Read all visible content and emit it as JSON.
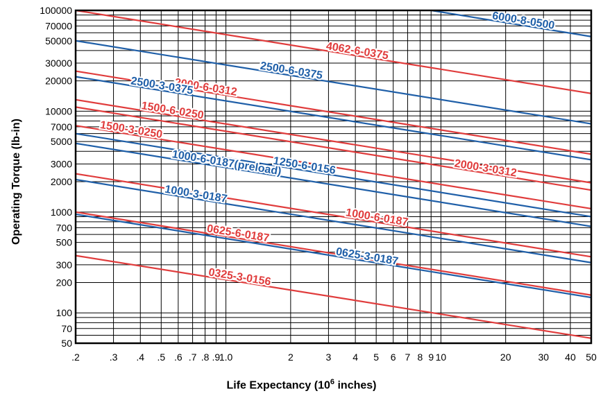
{
  "chart_data": {
    "type": "line",
    "title": "",
    "xlabel_main": "Life Expectancy (10",
    "xlabel_sup": "6",
    "xlabel_tail": " inches)",
    "ylabel": "Operating Torque (lb-in)",
    "x_scale": "log",
    "y_scale": "log",
    "xlim": [
      0.2,
      50
    ],
    "ylim": [
      50,
      100000
    ],
    "grid": true,
    "legend": "none",
    "x_ticks": [
      {
        "v": 0.2,
        "label": ".2"
      },
      {
        "v": 0.3,
        "label": ".3"
      },
      {
        "v": 0.4,
        "label": ".4"
      },
      {
        "v": 0.5,
        "label": ".5"
      },
      {
        "v": 0.6,
        "label": ".6"
      },
      {
        "v": 0.7,
        "label": ".7"
      },
      {
        "v": 0.8,
        "label": ".8"
      },
      {
        "v": 0.9,
        "label": ".9"
      },
      {
        "v": 1.0,
        "label": "1.0"
      },
      {
        "v": 2,
        "label": "2"
      },
      {
        "v": 3,
        "label": "3"
      },
      {
        "v": 4,
        "label": "4"
      },
      {
        "v": 5,
        "label": "5"
      },
      {
        "v": 6,
        "label": "6"
      },
      {
        "v": 7,
        "label": "7"
      },
      {
        "v": 8,
        "label": "8"
      },
      {
        "v": 9,
        "label": "9"
      },
      {
        "v": 10,
        "label": "10"
      },
      {
        "v": 20,
        "label": "20"
      },
      {
        "v": 30,
        "label": "30"
      },
      {
        "v": 40,
        "label": "40"
      },
      {
        "v": 50,
        "label": "50"
      }
    ],
    "y_ticks": [
      {
        "v": 50,
        "label": "50"
      },
      {
        "v": 70,
        "label": "70"
      },
      {
        "v": 100,
        "label": "100"
      },
      {
        "v": 200,
        "label": "200"
      },
      {
        "v": 300,
        "label": "300"
      },
      {
        "v": 500,
        "label": "500"
      },
      {
        "v": 700,
        "label": "700"
      },
      {
        "v": 1000,
        "label": "1000"
      },
      {
        "v": 2000,
        "label": "2000"
      },
      {
        "v": 3000,
        "label": "3000"
      },
      {
        "v": 5000,
        "label": "5000"
      },
      {
        "v": 7000,
        "label": "7000"
      },
      {
        "v": 10000,
        "label": "10000"
      },
      {
        "v": 20000,
        "label": "20000"
      },
      {
        "v": 30000,
        "label": "30000"
      },
      {
        "v": 50000,
        "label": "50000"
      },
      {
        "v": 70000,
        "label": "70000"
      },
      {
        "v": 100000,
        "label": "100000"
      }
    ],
    "y_grid_extra": [
      40000,
      60000,
      80000,
      90000,
      400,
      600,
      800,
      900,
      4000,
      6000,
      8000,
      9000,
      60,
      80,
      90
    ],
    "colors": {
      "red": "#e03c3c",
      "blue": "#1f5fa8"
    },
    "series": [
      {
        "name": "6000-8-0500",
        "color": "blue",
        "x": [
          9,
          50
        ],
        "y": [
          100000,
          55000
        ],
        "label_x": 2.0,
        "label_y": 19.2,
        "label_at": 24
      },
      {
        "name": "4062-6-0375",
        "color": "red",
        "x": [
          0.2,
          50
        ],
        "y": [
          100000,
          15000
        ],
        "label_x": 1.75,
        "label_y": 18.3,
        "label_at": 4.05
      },
      {
        "name": "2500-6-0375",
        "color": "blue",
        "x": [
          0.2,
          50
        ],
        "y": [
          50000,
          7500
        ],
        "label_x": 1.75,
        "label_y": 17.4,
        "label_at": 2.0
      },
      {
        "name": "2000-6-0312",
        "color": "red",
        "x": [
          0.2,
          50
        ],
        "y": [
          25000,
          3750
        ],
        "label_x": 1.6,
        "label_y": 16.6,
        "label_at": 0.8
      },
      {
        "name": "2500-3-0375",
        "color": "blue",
        "x": [
          0.2,
          50
        ],
        "y": [
          22000,
          3300
        ],
        "label_x": 1.4,
        "label_y": 16.5,
        "label_at": 0.5
      },
      {
        "name": "1500-6-0250",
        "color": "red",
        "x": [
          0.2,
          50
        ],
        "y": [
          13000,
          1950
        ],
        "label_x": 1.6,
        "label_y": 16.0,
        "label_at": 0.56
      },
      {
        "name": "2000-3-0312",
        "color": "red",
        "x": [
          0.2,
          50
        ],
        "y": [
          11000,
          1650
        ],
        "label_x": 1.9,
        "label_y": 18.1,
        "label_at": 16
      },
      {
        "name": "1500-3-0250",
        "color": "red",
        "x": [
          0.2,
          50
        ],
        "y": [
          7200,
          1080
        ],
        "label_x": 1.6,
        "label_y": 15.0,
        "label_at": 0.36
      },
      {
        "name": "1250-6-0156",
        "color": "blue",
        "x": [
          0.2,
          50
        ],
        "y": [
          6000,
          900
        ],
        "label_x": 1.65,
        "label_y": 17.2,
        "label_at": 2.3
      },
      {
        "name": "1000-6-0187(preload)",
        "color": "blue",
        "x": [
          0.2,
          50
        ],
        "y": [
          4800,
          720
        ],
        "label_x": 1.55,
        "label_y": 16.0,
        "label_at": 1.0
      },
      {
        "name": "1000-6-0187",
        "color": "red",
        "x": [
          0.2,
          50
        ],
        "y": [
          2400,
          360
        ],
        "label_x": 2.0,
        "label_y": 18.2,
        "label_at": 5.0
      },
      {
        "name": "1000-3-0187",
        "color": "blue",
        "x": [
          0.2,
          50
        ],
        "y": [
          2100,
          315
        ],
        "label_x": 1.3,
        "label_y": 14.5,
        "label_at": 0.72
      },
      {
        "name": "0625-6-0187",
        "color": "red",
        "x": [
          0.2,
          50
        ],
        "y": [
          1000,
          150
        ],
        "label_x": 1.45,
        "label_y": 15.5,
        "label_at": 1.13
      },
      {
        "name": "0625-3-0187",
        "color": "blue",
        "x": [
          0.2,
          50
        ],
        "y": [
          950,
          142
        ],
        "label_x": 2.0,
        "label_y": 17.5,
        "label_at": 4.5
      },
      {
        "name": "0325-3-0156",
        "color": "red",
        "x": [
          0.2,
          50
        ],
        "y": [
          370,
          56
        ],
        "label_x": 1.3,
        "label_y": 15.0,
        "label_at": 1.15
      }
    ]
  }
}
